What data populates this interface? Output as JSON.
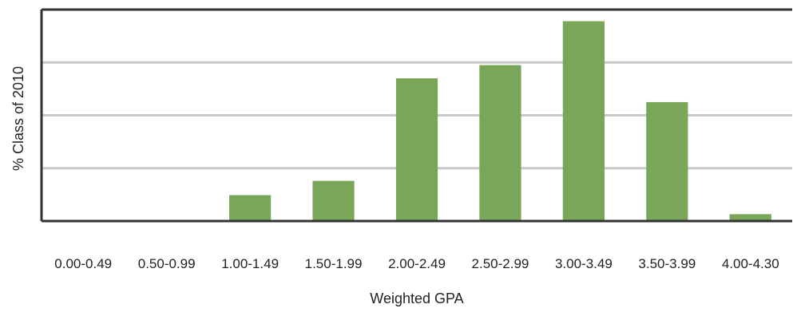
{
  "chart_data": {
    "type": "bar",
    "title": "",
    "xlabel": "Weighted GPA",
    "ylabel": "% Class of 2010",
    "categories": [
      "0.00-0.49",
      "0.50-0.99",
      "1.00-1.49",
      "1.50-1.99",
      "2.00-2.49",
      "2.50-2.99",
      "3.00-3.49",
      "3.50-3.99",
      "4.00-4.30"
    ],
    "values": [
      0,
      0,
      4.9,
      7.6,
      27,
      29.5,
      37.8,
      22.5,
      1.3
    ],
    "ylim": [
      0,
      40
    ],
    "gridlines": [
      10,
      20,
      30
    ],
    "grid": true,
    "legend": "none",
    "colors": {
      "bar": "#7aa65a",
      "grid": "#c8c8c8",
      "axis": "#333333",
      "text": "#222222"
    }
  }
}
